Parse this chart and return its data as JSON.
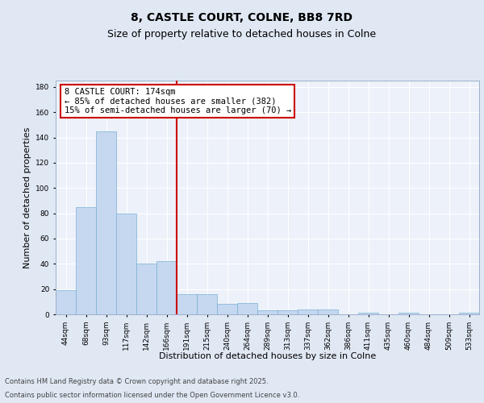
{
  "title_line1": "8, CASTLE COURT, COLNE, BB8 7RD",
  "title_line2": "Size of property relative to detached houses in Colne",
  "xlabel": "Distribution of detached houses by size in Colne",
  "ylabel": "Number of detached properties",
  "categories": [
    "44sqm",
    "68sqm",
    "93sqm",
    "117sqm",
    "142sqm",
    "166sqm",
    "191sqm",
    "215sqm",
    "240sqm",
    "264sqm",
    "289sqm",
    "313sqm",
    "337sqm",
    "362sqm",
    "386sqm",
    "411sqm",
    "435sqm",
    "460sqm",
    "484sqm",
    "509sqm",
    "533sqm"
  ],
  "values": [
    19,
    85,
    145,
    80,
    40,
    42,
    16,
    16,
    8,
    9,
    3,
    3,
    4,
    4,
    0,
    1,
    0,
    1,
    0,
    0,
    1
  ],
  "bar_color": "#c5d8f0",
  "bar_edge_color": "#7aafd4",
  "vline_x_index": 5.5,
  "vline_color": "#cc0000",
  "annotation_line1": "8 CASTLE COURT: 174sqm",
  "annotation_line2": "← 85% of detached houses are smaller (382)",
  "annotation_line3": "15% of semi-detached houses are larger (70) →",
  "annotation_box_color": "#cc0000",
  "ylim": [
    0,
    185
  ],
  "yticks": [
    0,
    20,
    40,
    60,
    80,
    100,
    120,
    140,
    160,
    180
  ],
  "bg_color": "#e0e8f4",
  "plot_bg_color": "#edf1f9",
  "footer_line1": "Contains HM Land Registry data © Crown copyright and database right 2025.",
  "footer_line2": "Contains public sector information licensed under the Open Government Licence v3.0.",
  "title_fontsize": 10,
  "subtitle_fontsize": 9,
  "tick_fontsize": 6.5,
  "label_fontsize": 8,
  "annotation_fontsize": 7.5,
  "footer_fontsize": 6
}
